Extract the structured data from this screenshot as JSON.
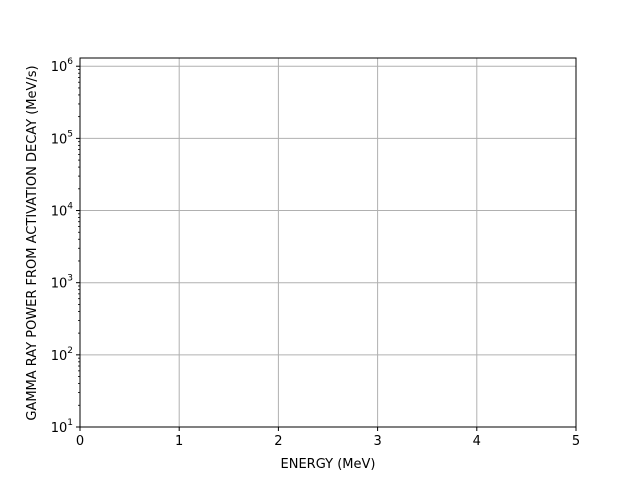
{
  "chart_data": {
    "type": "line",
    "title": "",
    "xlabel": "ENERGY (MeV)",
    "ylabel": "GAMMA RAY POWER FROM ACTIVATION DECAY (MeV/s)",
    "xlim": [
      0,
      5
    ],
    "ylim": [
      10,
      1300000
    ],
    "yscale": "log",
    "grid": true,
    "xticks": [
      0,
      1,
      2,
      3,
      4,
      5
    ],
    "xtick_labels": [
      "0",
      "1",
      "2",
      "3",
      "4",
      "5"
    ],
    "yticks": [
      10,
      100,
      1000,
      10000,
      100000,
      1000000
    ],
    "ytick_labels": [
      {
        "base": "10",
        "exp": "1"
      },
      {
        "base": "10",
        "exp": "2"
      },
      {
        "base": "10",
        "exp": "3"
      },
      {
        "base": "10",
        "exp": "4"
      },
      {
        "base": "10",
        "exp": "5"
      },
      {
        "base": "10",
        "exp": "6"
      }
    ],
    "series": [],
    "colors": {
      "grid": "#b0b0b0",
      "axis": "#000000",
      "background": "#ffffff"
    }
  }
}
